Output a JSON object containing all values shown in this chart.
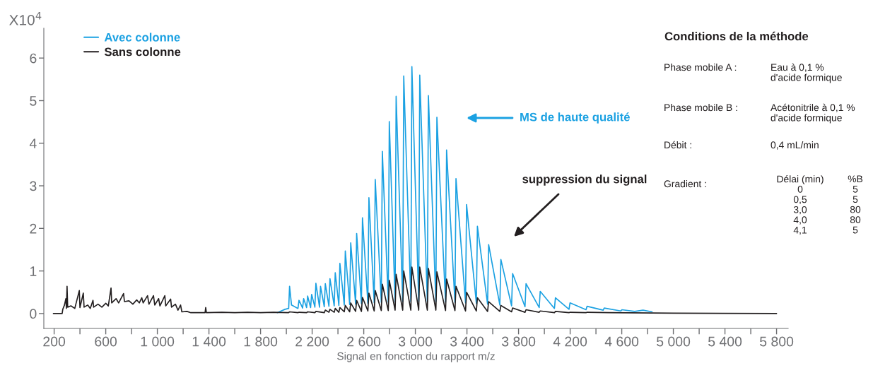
{
  "chart_data": {
    "type": "line",
    "ylabel": "X10$^{4}$",
    "xlabel": "Signal en fonction du rapport m/z",
    "xlim": [
      120,
      5890
    ],
    "ylim": [
      -0.35,
      6.7
    ],
    "xticks": [
      200,
      {
        "value": 400,
        "label": null
      },
      600,
      {
        "value": 800,
        "label": null
      },
      {
        "value": 1000,
        "label": "1 000"
      },
      {
        "value": 1200,
        "label": null
      },
      {
        "value": 1400,
        "label": "1 400"
      },
      {
        "value": 1600,
        "label": null
      },
      {
        "value": 1800,
        "label": "1 800"
      },
      {
        "value": 2000,
        "label": null
      },
      {
        "value": 2200,
        "label": "2 200"
      },
      {
        "value": 2400,
        "label": null
      },
      {
        "value": 2600,
        "label": "2 600"
      },
      {
        "value": 2800,
        "label": null
      },
      {
        "value": 3000,
        "label": "3 000"
      },
      {
        "value": 3200,
        "label": null
      },
      {
        "value": 3400,
        "label": "3 400"
      },
      {
        "value": 3600,
        "label": null
      },
      {
        "value": 3800,
        "label": "3 800"
      },
      {
        "value": 4000,
        "label": null
      },
      {
        "value": 4200,
        "label": "4 200"
      },
      {
        "value": 4400,
        "label": null
      },
      {
        "value": 4600,
        "label": "4 600"
      },
      {
        "value": 4800,
        "label": null
      },
      {
        "value": 5000,
        "label": "5 000"
      },
      {
        "value": 5200,
        "label": null
      },
      {
        "value": 5400,
        "label": "5 400"
      },
      {
        "value": 5600,
        "label": null
      },
      {
        "value": 5800,
        "label": "5 800"
      }
    ],
    "yticks": [
      0,
      1,
      2,
      3,
      4,
      5,
      6
    ],
    "grid": false,
    "legend": "top left",
    "marker": "none",
    "line_style": "solid",
    "series": [
      {
        "name": "Avec colonne",
        "color": "#1ba1e2",
        "x": [
          1930,
          1960,
          1990,
          2018,
          2025,
          2040,
          2090,
          2098,
          2126,
          2134,
          2157,
          2165,
          2188,
          2196,
          2221,
          2229,
          2257,
          2265,
          2294,
          2302,
          2330,
          2338,
          2371,
          2379,
          2407,
          2415,
          2449,
          2457,
          2491,
          2499,
          2537,
          2545,
          2582,
          2590,
          2632,
          2640,
          2681,
          2689,
          2736,
          2744,
          2790,
          2798,
          2843,
          2851,
          2902,
          2910,
          2965,
          2973,
          3026,
          3034,
          3093,
          3101,
          3159,
          3167,
          3234,
          3242,
          3307,
          3315,
          3389,
          3397,
          3473,
          3481,
          3560,
          3568,
          3655,
          3663,
          3746,
          3754,
          3850,
          3858,
          3960,
          3968,
          4078,
          4086,
          4191,
          4199,
          4323,
          4331,
          4456,
          4464,
          4593,
          4601,
          4700,
          4765,
          4835
        ],
        "values": [
          0.02,
          0.06,
          0.1,
          0.12,
          0.64,
          0.2,
          0.12,
          0.31,
          0.13,
          0.35,
          0.14,
          0.41,
          0.14,
          0.45,
          0.15,
          0.71,
          0.15,
          0.64,
          0.16,
          0.7,
          0.17,
          0.82,
          0.18,
          0.96,
          0.19,
          1.18,
          0.2,
          1.47,
          0.21,
          1.66,
          0.22,
          1.88,
          0.23,
          2.25,
          0.24,
          2.72,
          0.25,
          3.15,
          0.26,
          3.81,
          0.27,
          4.51,
          0.28,
          5.1,
          0.28,
          5.58,
          0.28,
          5.8,
          0.28,
          5.6,
          0.28,
          5.12,
          0.28,
          4.61,
          0.27,
          3.84,
          0.26,
          3.17,
          0.25,
          2.56,
          0.24,
          2.05,
          0.22,
          1.62,
          0.2,
          1.27,
          0.18,
          0.94,
          0.16,
          0.7,
          0.14,
          0.52,
          0.12,
          0.37,
          0.1,
          0.25,
          0.09,
          0.17,
          0.08,
          0.13,
          0.06,
          0.09,
          0.05,
          0.08,
          0.04
        ]
      },
      {
        "name": "Sans colonne",
        "color": "#231f20",
        "x": [
          194,
          262,
          267,
          280,
          291,
          295,
          300,
          305,
          330,
          360,
          395,
          400,
          426,
          432,
          460,
          480,
          501,
          506,
          540,
          570,
          600,
          620,
          641,
          646,
          680,
          700,
          738,
          745,
          780,
          810,
          840,
          860,
          879,
          890,
          924,
          935,
          970,
          980,
          1010,
          1020,
          1058,
          1065,
          1103,
          1110,
          1140,
          1160,
          1180,
          1190,
          1230,
          1260,
          1370,
          1375,
          1380,
          1500,
          1600,
          1700,
          1800,
          1900,
          2017,
          2025,
          2090,
          2098,
          2157,
          2165,
          2221,
          2229,
          2294,
          2302,
          2330,
          2338,
          2371,
          2379,
          2407,
          2415,
          2449,
          2457,
          2491,
          2499,
          2537,
          2545,
          2582,
          2590,
          2632,
          2640,
          2681,
          2689,
          2736,
          2744,
          2790,
          2798,
          2843,
          2851,
          2902,
          2910,
          2965,
          2973,
          3026,
          3034,
          3093,
          3101,
          3159,
          3167,
          3234,
          3242,
          3307,
          3315,
          3389,
          3397,
          3473,
          3481,
          3560,
          3568,
          3655,
          3663,
          3746,
          3754,
          3850,
          3858,
          3960,
          3968,
          4078,
          4086,
          4191,
          4199,
          4323,
          4331,
          4500,
          5000,
          5800
        ],
        "values": [
          0,
          0,
          0.1,
          0.2,
          0.35,
          0.12,
          0.64,
          0.15,
          0.18,
          0.12,
          0.54,
          0.14,
          0.48,
          0.15,
          0.2,
          0.12,
          0.31,
          0.15,
          0.22,
          0.15,
          0.24,
          0.18,
          0.6,
          0.25,
          0.35,
          0.25,
          0.47,
          0.28,
          0.3,
          0.22,
          0.32,
          0.25,
          0.37,
          0.25,
          0.42,
          0.22,
          0.42,
          0.2,
          0.35,
          0.18,
          0.42,
          0.18,
          0.34,
          0.15,
          0.22,
          0.08,
          0.2,
          0.04,
          0.05,
          0.02,
          0.02,
          0.14,
          0.02,
          0.03,
          0.02,
          0.03,
          0.02,
          0.03,
          0.02,
          0.04,
          0.02,
          0.03,
          0.02,
          0.04,
          0.02,
          0.05,
          0.02,
          0.08,
          0.03,
          0.1,
          0.03,
          0.12,
          0.03,
          0.14,
          0.04,
          0.19,
          0.04,
          0.25,
          0.05,
          0.31,
          0.05,
          0.38,
          0.06,
          0.48,
          0.06,
          0.54,
          0.07,
          0.69,
          0.07,
          0.78,
          0.08,
          0.92,
          0.08,
          1.0,
          0.08,
          1.09,
          0.08,
          1.09,
          0.08,
          1.06,
          0.08,
          0.98,
          0.07,
          0.81,
          0.07,
          0.64,
          0.06,
          0.5,
          0.06,
          0.37,
          0.05,
          0.28,
          0.05,
          0.19,
          0.04,
          0.13,
          0.03,
          0.09,
          0.03,
          0.06,
          0.02,
          0.05,
          0.02,
          0.03,
          0.02,
          0.03,
          0.02,
          0.01,
          0
        ]
      }
    ],
    "annotations": [
      "MS de haute qualité",
      "suppression du signal",
      "Conditions de la méthode",
      "Phase mobile A :",
      "Eau à 0,1 %\nd'acide formique",
      "Phase mobile B :",
      "Acétonitrile à 0,1 %\nd'acide formique",
      "Débit :",
      "0,4 mL/min",
      "Gradient :",
      "Délai (min)\n0\n0,5\n3,0\n4,0\n4,1",
      "%B\n5\n5\n80\n80\n5"
    ]
  }
}
